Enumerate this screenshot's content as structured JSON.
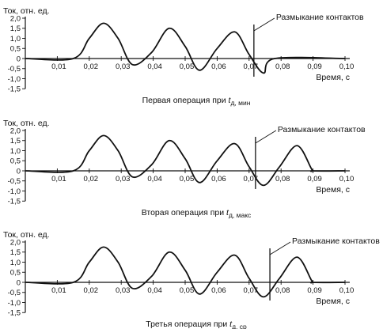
{
  "chart_data": [
    {
      "type": "line",
      "ylabel": "Ток, отн. ед.",
      "xlabel": "Время, с",
      "xlim": [
        0,
        0.1
      ],
      "ylim": [
        -1.5,
        2.0
      ],
      "xticks": [
        "0,01",
        "0,02",
        "0,03",
        "0,04",
        "0,05",
        "0,06",
        "0,07",
        "0,08",
        "0,09",
        "0,10"
      ],
      "yticks": [
        "2,0",
        "1,5",
        "1,0",
        "0,5",
        "0",
        "-0,5",
        "-1,0",
        "-1,5"
      ],
      "annotation": "Размыкание контактов",
      "contact_open_x": 0.0715,
      "caption_main": "Первая операция при t",
      "caption_sub": "д, мин",
      "series": [
        {
          "x": [
            0.0,
            0.015,
            0.02,
            0.0245,
            0.029,
            0.0335,
            0.0395,
            0.045,
            0.05,
            0.0545,
            0.06,
            0.0655,
            0.07,
            0.0745,
            0.078,
            0.1
          ],
          "y": [
            0,
            0,
            1.0,
            1.75,
            1.0,
            -0.3,
            0.3,
            1.5,
            0.6,
            -0.58,
            0.5,
            1.32,
            0.2,
            -0.72,
            0,
            0
          ]
        }
      ]
    },
    {
      "type": "line",
      "ylabel": "Ток, отн. ед.",
      "xlabel": "Время, с",
      "xlim": [
        0,
        0.1
      ],
      "ylim": [
        -1.5,
        2.0
      ],
      "xticks": [
        "0,01",
        "0,02",
        "0,03",
        "0,04",
        "0,05",
        "0,06",
        "0,07",
        "0,08",
        "0,09",
        "0,10"
      ],
      "yticks": [
        "2,0",
        "1,5",
        "1,0",
        "0,5",
        "0",
        "-0,5",
        "-1,0",
        "-1,5"
      ],
      "annotation": "Размыкание контактов",
      "contact_open_x": 0.072,
      "caption_main": "Вторая операция при t",
      "caption_sub": "д, макс",
      "series": [
        {
          "x": [
            0.0,
            0.015,
            0.02,
            0.0245,
            0.029,
            0.0335,
            0.0395,
            0.045,
            0.05,
            0.0545,
            0.06,
            0.0655,
            0.07,
            0.0745,
            0.0795,
            0.085,
            0.0895,
            0.09,
            0.1
          ],
          "y": [
            0,
            0,
            1.0,
            1.75,
            1.0,
            -0.3,
            0.3,
            1.5,
            0.6,
            -0.58,
            0.5,
            1.35,
            0.2,
            -0.72,
            0.2,
            1.25,
            0.1,
            0,
            0
          ]
        }
      ]
    },
    {
      "type": "line",
      "ylabel": "Ток, отн. ед.",
      "xlabel": "Время, с",
      "xlim": [
        0,
        0.1
      ],
      "ylim": [
        -1.5,
        2.0
      ],
      "xticks": [
        "0,01",
        "0,02",
        "0,03",
        "0,04",
        "0,05",
        "0,06",
        "0,07",
        "0,08",
        "0,09",
        "0,10"
      ],
      "yticks": [
        "2,0",
        "1,5",
        "1,0",
        "0,5",
        "0",
        "-0,5",
        "-1,0",
        "-1,5"
      ],
      "annotation": "Размыкание контактов",
      "contact_open_x": 0.0765,
      "caption_main": "Третья операция при t",
      "caption_sub": "д, ср",
      "series": [
        {
          "x": [
            0.0,
            0.015,
            0.02,
            0.0245,
            0.029,
            0.0335,
            0.0395,
            0.045,
            0.05,
            0.0545,
            0.06,
            0.0655,
            0.07,
            0.0745,
            0.0795,
            0.085,
            0.0895,
            0.09,
            0.1
          ],
          "y": [
            0,
            0,
            1.0,
            1.75,
            1.0,
            -0.3,
            0.3,
            1.5,
            0.6,
            -0.58,
            0.5,
            1.35,
            0.2,
            -0.72,
            0.2,
            1.25,
            0.1,
            0,
            0
          ]
        }
      ]
    }
  ]
}
